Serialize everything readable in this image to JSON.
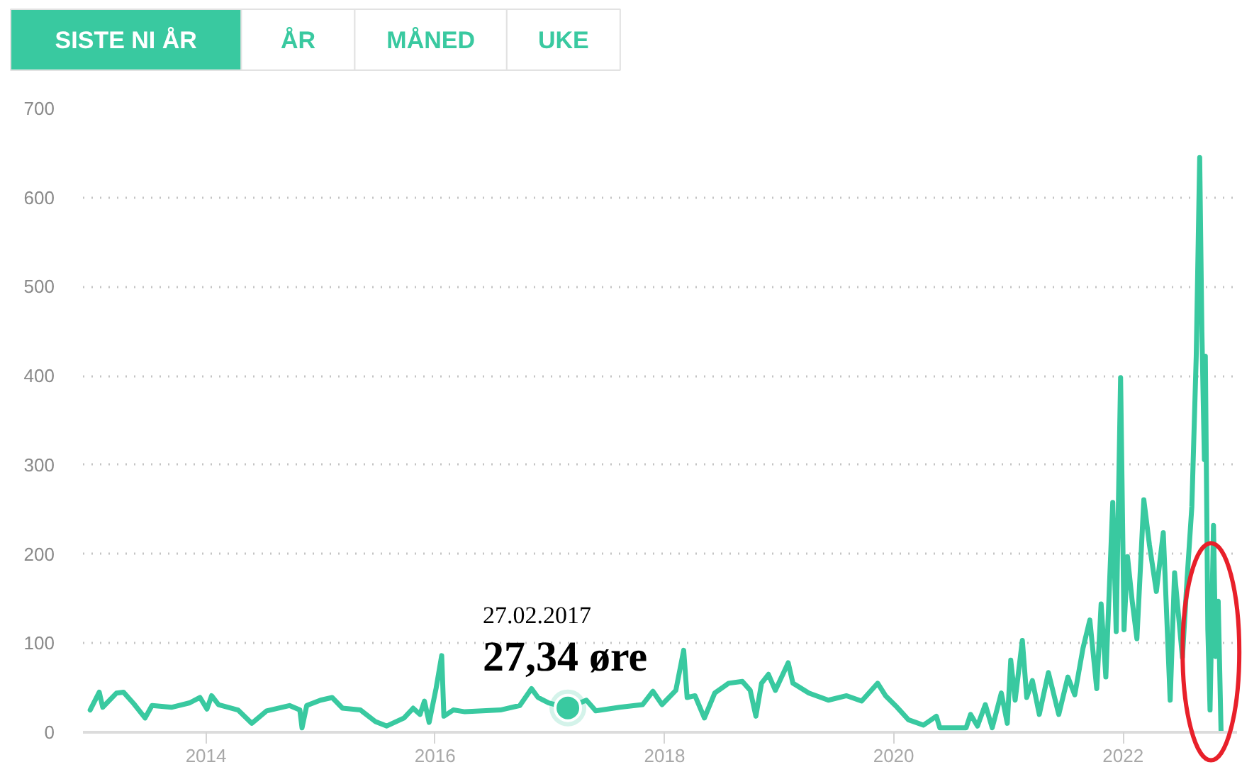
{
  "chart_data": {
    "type": "line",
    "annotations": [
      "SISTE NI ÅR",
      "ÅR",
      "MÅNED",
      "UKE",
      {
        "text": "27.02.2017\n27,34 øre",
        "x": "2017-02-27",
        "y": 27.34
      }
    ],
    "x": [
      "2012-12-28",
      "2013-01-26",
      "2013-02-06",
      "2013-03-22",
      "2013-04-13",
      "2013-05-16",
      "2013-06-21",
      "2013-07-13",
      "2013-09-13",
      "2013-11-10",
      "2013-12-13",
      "2014-01-04",
      "2014-01-19",
      "2014-02-10",
      "2014-04-13",
      "2014-05-27",
      "2014-07-13",
      "2014-09-24",
      "2014-10-27",
      "2014-11-03",
      "2014-11-18",
      "2015-01-01",
      "2015-02-07",
      "2015-03-12",
      "2015-05-08",
      "2015-06-25",
      "2015-07-31",
      "2015-09-24",
      "2015-10-23",
      "2015-11-14",
      "2015-11-28",
      "2015-12-13",
      "2016-01-04",
      "2016-01-22",
      "2016-01-29",
      "2016-02-28",
      "2016-04-05",
      "2016-07-27",
      "2016-09-27",
      "2016-11-03",
      "2016-11-24",
      "2016-12-28",
      "2017-02-27",
      "2017-04-27",
      "2017-05-27",
      "2017-08-11",
      "2017-10-23",
      "2017-11-25",
      "2017-12-24",
      "2018-02-06",
      "2018-03-03",
      "2018-03-14",
      "2018-04-08",
      "2018-05-08",
      "2018-06-10",
      "2018-07-24",
      "2018-09-06",
      "2018-10-01",
      "2018-10-19",
      "2018-11-06",
      "2018-11-28",
      "2018-12-20",
      "2019-01-30",
      "2019-02-14",
      "2019-04-06",
      "2019-06-07",
      "2019-08-04",
      "2019-09-21",
      "2019-11-11",
      "2019-12-06",
      "2020-01-12",
      "2020-02-17",
      "2020-04-05",
      "2020-05-16",
      "2020-05-27",
      "2020-08-19",
      "2020-09-02",
      "2020-09-24",
      "2020-10-19",
      "2020-11-10",
      "2020-12-09",
      "2020-12-28",
      "2021-01-08",
      "2021-01-22",
      "2021-02-14",
      "2021-02-28",
      "2021-03-18",
      "2021-04-09",
      "2021-05-08",
      "2021-06-10",
      "2021-07-09",
      "2021-07-31",
      "2021-08-26",
      "2021-09-17",
      "2021-10-09",
      "2021-10-23",
      "2021-11-07",
      "2021-11-29",
      "2021-12-10",
      "2021-12-24",
      "2022-01-04",
      "2022-01-15",
      "2022-01-30",
      "2022-02-14",
      "2022-03-08",
      "2022-03-26",
      "2022-04-17",
      "2022-05-09",
      "2022-05-31",
      "2022-06-14",
      "2022-07-09",
      "2022-07-24",
      "2022-08-08",
      "2022-08-22",
      "2022-09-02",
      "2022-09-09",
      "2022-09-17",
      "2022-09-20",
      "2022-09-28",
      "2022-10-05",
      "2022-10-16",
      "2022-10-23",
      "2022-10-31",
      "2022-11-09"
    ],
    "series": [
      {
        "color": "#39c9a0",
        "values": [
          25,
          45,
          28,
          44,
          45,
          32,
          16,
          30,
          28,
          33,
          39,
          26,
          41,
          31,
          25,
          10,
          24,
          30,
          25,
          5,
          30,
          36,
          39,
          27,
          25,
          12,
          7,
          16,
          27,
          20,
          35,
          11,
          49,
          86,
          18,
          25,
          23,
          25,
          30,
          49,
          39,
          33,
          27.34,
          36,
          24,
          28,
          31,
          46,
          31,
          47,
          92,
          39,
          41,
          16,
          44,
          55,
          57,
          47,
          18,
          55,
          65,
          47,
          78,
          55,
          44,
          36,
          41,
          35,
          55,
          41,
          28,
          14,
          8,
          18,
          5,
          5,
          20,
          7,
          31,
          5,
          44,
          10,
          81,
          36,
          103,
          39,
          58,
          20,
          67,
          20,
          62,
          42,
          94,
          126,
          49,
          144,
          62,
          258,
          113,
          398,
          115,
          197,
          147,
          105,
          261,
          210,
          158,
          224,
          36,
          179,
          84,
          173,
          253,
          422,
          645,
          449,
          306,
          422,
          115,
          25,
          232,
          85,
          147,
          2
        ]
      }
    ],
    "xlim": [
      "2012-12-05",
      "2022-12-30"
    ],
    "xticks": [
      "2014",
      "2016",
      "2018",
      "2020",
      "2022"
    ],
    "ylim": [
      0,
      700
    ],
    "yticks": [
      0,
      100,
      200,
      300,
      400,
      500,
      600,
      700
    ],
    "grid": "y"
  }
}
